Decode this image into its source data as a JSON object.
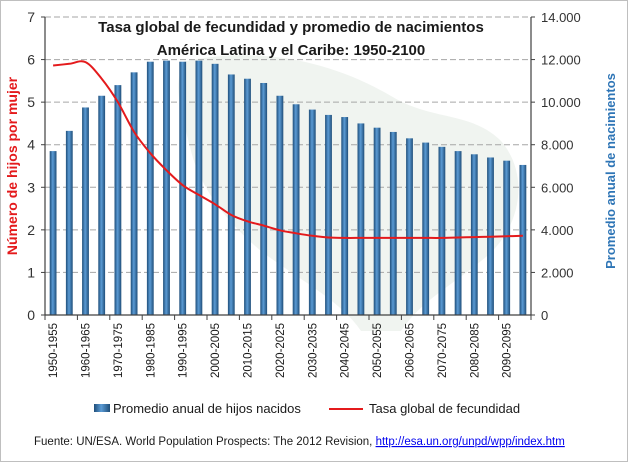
{
  "chart_data": {
    "type": "bar",
    "title_line1": "Tasa global de fecundidad y promedio de nacimientos",
    "title_line2": "América Latina y el Caribe: 1950-2100",
    "ylabel_left": "Número de hijos por mujer",
    "ylabel_right": "Promedio anual de nacimientos",
    "ylim_left": [
      0,
      7
    ],
    "ylim_right": [
      0,
      14000
    ],
    "yticks_left": [
      "0",
      "1",
      "2",
      "3",
      "4",
      "5",
      "6",
      "7"
    ],
    "yticks_right": [
      "0",
      "2.000",
      "4.000",
      "6.000",
      "8.000",
      "10.000",
      "12.000",
      "14.000"
    ],
    "grid": true,
    "categories": [
      "1950-1955",
      "1955-1960",
      "1960-1965",
      "1965-1970",
      "1970-1975",
      "1975-1980",
      "1980-1985",
      "1985-1990",
      "1990-1995",
      "1995-2000",
      "2000-2005",
      "2005-2010",
      "2010-2015",
      "2015-2020",
      "2020-2025",
      "2025-2030",
      "2030-2035",
      "2035-2040",
      "2040-2045",
      "2045-2050",
      "2050-2055",
      "2055-2060",
      "2060-2065",
      "2065-2070",
      "2070-2075",
      "2075-2080",
      "2080-2085",
      "2085-2090",
      "2090-2095",
      "2095-2100"
    ],
    "x_tick_labels": [
      "1950-1955",
      "1960-1965",
      "1970-1975",
      "1980-1985",
      "1990-1995",
      "2000-2005",
      "2010-2015",
      "2020-2025",
      "2030-2035",
      "2040-2045",
      "2050-2055",
      "2060-2065",
      "2070-2075",
      "2080-2085",
      "2090-2095"
    ],
    "series": [
      {
        "name": "Promedio anual de hijos nacidos",
        "type": "bar",
        "axis": "right",
        "color": "#2e6da4",
        "values": [
          7700,
          8650,
          9750,
          10300,
          10800,
          11400,
          11900,
          11950,
          11900,
          11950,
          11800,
          11300,
          11100,
          10900,
          10300,
          9900,
          9650,
          9400,
          9300,
          9000,
          8800,
          8600,
          8300,
          8100,
          7900,
          7700,
          7550,
          7400,
          7250,
          7050
        ]
      },
      {
        "name": "Tasa global de fecundidad",
        "type": "line",
        "axis": "left",
        "color": "#e41a1c",
        "values": [
          5.86,
          5.9,
          5.94,
          5.55,
          5.0,
          4.3,
          3.8,
          3.4,
          3.05,
          2.82,
          2.6,
          2.35,
          2.2,
          2.1,
          1.99,
          1.92,
          1.86,
          1.82,
          1.81,
          1.81,
          1.81,
          1.81,
          1.81,
          1.81,
          1.81,
          1.82,
          1.83,
          1.84,
          1.85,
          1.86
        ]
      }
    ]
  },
  "source": {
    "text": "Fuente: UN/ESA. World Population Prospects: The 2012 Revision, ",
    "link": "http://esa.un.org/unpd/wpp/index.htm"
  },
  "colors": {
    "bar": "#2e6da4",
    "line": "#e41a1c",
    "right_axis": "#2e75b6",
    "grid": "#a6a6a6"
  }
}
